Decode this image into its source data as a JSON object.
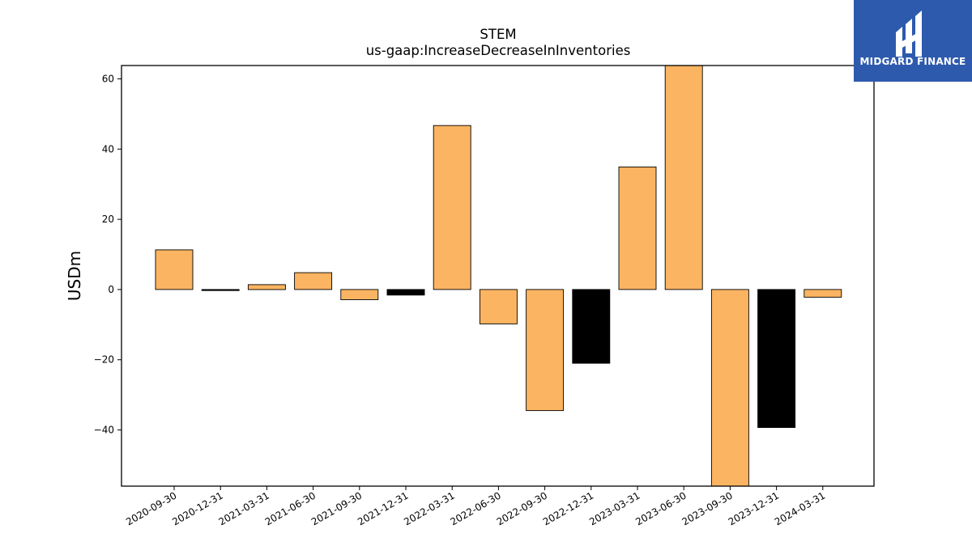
{
  "chart_data": {
    "type": "bar",
    "title": "STEM",
    "subtitle": "us-gaap:IncreaseDecreaseInInventories",
    "ylabel": "USDm",
    "xlabel": "",
    "ylim": [
      -56,
      63.8
    ],
    "yticks": [
      -40,
      -20,
      0,
      20,
      40,
      60
    ],
    "grid": false,
    "categories": [
      "2020-09-30",
      "2020-12-31",
      "2021-03-31",
      "2021-06-30",
      "2021-09-30",
      "2021-12-31",
      "2022-03-31",
      "2022-06-30",
      "2022-09-30",
      "2022-12-31",
      "2023-03-31",
      "2023-06-30",
      "2023-09-30",
      "2023-12-31",
      "2024-03-31"
    ],
    "values": [
      11.3,
      -0.3,
      1.4,
      4.8,
      -2.9,
      -1.6,
      46.7,
      -9.8,
      -34.5,
      -21.0,
      34.9,
      64.5,
      -57.0,
      -39.3,
      -2.2
    ],
    "bar_colors": [
      "#fbb461",
      "#000000",
      "#fbb461",
      "#fbb461",
      "#fbb461",
      "#000000",
      "#fbb461",
      "#fbb461",
      "#fbb461",
      "#000000",
      "#fbb461",
      "#fbb461",
      "#fbb461",
      "#000000",
      "#fbb461"
    ],
    "colors": {
      "primary": "#fbb461",
      "highlight": "#000000"
    }
  },
  "logo": {
    "text": "MIDGARD FINANCE",
    "background": "#2d5aad"
  }
}
